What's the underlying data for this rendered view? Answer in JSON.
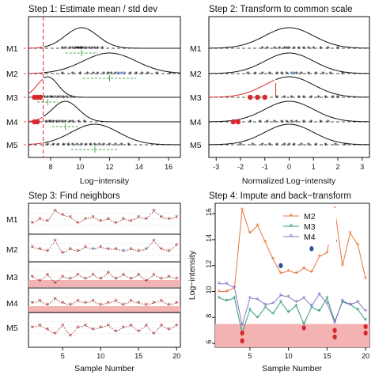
{
  "colors": {
    "black": "#111111",
    "red": "#d8262b",
    "blue": "#2f5fae",
    "green": "#4aa84a",
    "band": "#f4b3b3",
    "m2": "#e8763a",
    "m3": "#2e9a7e",
    "m4": "#8a75c4",
    "dot_red": "#d8262b",
    "dot_blue": "#2b4f9c"
  },
  "chart_data": [
    {
      "panel": "step1",
      "type": "scatter",
      "title": "Step 1: Estimate mean / std dev",
      "xlabel": "Log−intensity",
      "ylabel": "",
      "xlim": [
        6.5,
        16.8
      ],
      "xticks": [
        8,
        10,
        12,
        14,
        16
      ],
      "threshold": 7.5,
      "rows": [
        {
          "name": "M1",
          "mean": 10.1,
          "sd": 1.1,
          "points": [
            8.8,
            9.0,
            9.3,
            9.5,
            9.7,
            9.8,
            9.9,
            10.0,
            10.1,
            10.2,
            10.4,
            10.6,
            10.8,
            11.0,
            11.2,
            11.5
          ],
          "red_points": [],
          "blue_points": []
        },
        {
          "name": "M2",
          "mean": 12.0,
          "sd": 1.8,
          "points": [
            8.8,
            9.5,
            10.0,
            10.5,
            10.9,
            11.2,
            11.6,
            11.9,
            12.1,
            12.4,
            13.4,
            13.8,
            14.2,
            14.6,
            15.2,
            16.1
          ],
          "red_points": [],
          "blue_points": [
            12.6,
            12.8,
            13.0
          ]
        },
        {
          "name": "M3",
          "mean": 7.8,
          "sd": 0.7,
          "points": [
            7.4,
            7.6,
            7.8,
            8.0,
            8.1,
            8.3,
            8.5,
            8.7,
            8.9,
            9.1,
            9.4
          ],
          "red_points": [
            6.9,
            7.1,
            7.3
          ],
          "blue_points": []
        },
        {
          "name": "M4",
          "mean": 9.0,
          "sd": 0.9,
          "points": [
            7.7,
            7.9,
            8.0,
            8.2,
            8.4,
            8.6,
            8.8,
            9.0,
            9.3,
            9.5,
            9.9,
            10.3
          ],
          "red_points": [
            6.9,
            7.1
          ],
          "blue_points": []
        },
        {
          "name": "M5",
          "mean": 11.0,
          "sd": 1.6,
          "points": [
            7.8,
            8.2,
            8.5,
            8.9,
            9.2,
            9.5,
            9.8,
            10.1,
            10.4,
            10.7,
            11.0,
            11.3,
            11.6,
            12.0,
            12.4,
            12.8,
            13.3
          ],
          "red_points": [],
          "blue_points": []
        }
      ]
    },
    {
      "panel": "step2",
      "type": "scatter",
      "title": "Step 2: Transform to common scale",
      "xlabel": "Normalized Log−intensity",
      "ylabel": "",
      "xlim": [
        -3.3,
        3.3
      ],
      "xticks": [
        -3,
        -2,
        -1,
        0,
        1,
        2,
        3
      ],
      "rows": [
        {
          "name": "M1",
          "threshold": null,
          "points": [
            -1.1,
            -0.9,
            -0.6,
            -0.4,
            -0.2,
            -0.1,
            0.0,
            0.2,
            0.4,
            0.6,
            0.8,
            1.0,
            1.3,
            1.6,
            2.0
          ],
          "red_points": [],
          "blue_points": []
        },
        {
          "name": "M2",
          "threshold": null,
          "points": [
            -1.7,
            -1.4,
            -1.1,
            -0.8,
            -0.5,
            -0.3,
            -0.1,
            0.3,
            0.5,
            0.8,
            1.1,
            1.4,
            1.7,
            2.2
          ],
          "red_points": [],
          "blue_points": [
            0.1,
            0.2
          ]
        },
        {
          "name": "M3",
          "threshold": -0.55,
          "points": [
            -0.5,
            -0.2,
            0.1,
            0.4,
            0.6,
            0.9,
            1.2,
            1.5,
            1.8,
            2.0
          ],
          "red_points": [
            -1.6,
            -1.3,
            -1.0
          ],
          "blue_points": []
        },
        {
          "name": "M4",
          "threshold": null,
          "points": [
            -1.6,
            -1.2,
            -0.9,
            -0.6,
            -0.3,
            -0.1,
            0.1,
            0.3,
            0.6,
            0.9,
            1.3,
            1.6
          ],
          "red_points": [
            -2.3,
            -2.1
          ],
          "blue_points": []
        },
        {
          "name": "M5",
          "threshold": null,
          "points": [
            -2.0,
            -1.5,
            -1.1,
            -0.8,
            -0.5,
            -0.2,
            0.0,
            0.2,
            0.5,
            0.8,
            1.1,
            1.5,
            1.9,
            2.3
          ],
          "red_points": [],
          "blue_points": []
        }
      ]
    },
    {
      "panel": "step3",
      "type": "line",
      "title": "Step 3: Find neighbors",
      "xlabel": "Sample Number",
      "ylabel": "",
      "xlim": [
        0.5,
        20.5
      ],
      "xticks": [
        5,
        10,
        15,
        20
      ],
      "rows": [
        {
          "name": "M1",
          "values": [
            0.3,
            0.5,
            0.4,
            0.9,
            0.7,
            0.6,
            0.3,
            0.5,
            0.6,
            0.4,
            0.5,
            0.3,
            0.5,
            0.4,
            0.6,
            0.5,
            0.9,
            0.6,
            0.5,
            0.6
          ],
          "blue": [],
          "band": false
        },
        {
          "name": "M2",
          "values": [
            0.6,
            0.5,
            0.4,
            0.9,
            0.3,
            0.5,
            0.4,
            0.6,
            0.5,
            0.6,
            0.5,
            0.5,
            0.4,
            0.5,
            0.4,
            0.5,
            0.9,
            0.5,
            0.4,
            0.7
          ],
          "blue": [
            9,
            13,
            16
          ],
          "band": false
        },
        {
          "name": "M3",
          "values": [
            0.5,
            0.3,
            0.6,
            0.2,
            0.5,
            0.4,
            0.6,
            0.4,
            0.6,
            0.4,
            0.7,
            0.4,
            0.6,
            0.4,
            0.6,
            0.3,
            0.6,
            0.4,
            0.5,
            0.4
          ],
          "blue": [],
          "band": true
        },
        {
          "name": "M4",
          "values": [
            0.5,
            0.6,
            0.4,
            0.7,
            0.5,
            0.4,
            0.6,
            0.5,
            0.6,
            0.4,
            0.5,
            0.6,
            0.4,
            0.6,
            0.5,
            0.4,
            0.5,
            0.6,
            0.4,
            0.5
          ],
          "blue": [],
          "band": true
        },
        {
          "name": "M5",
          "values": [
            0.5,
            0.6,
            0.4,
            0.2,
            0.6,
            0.1,
            0.5,
            0.6,
            0.4,
            0.5,
            0.6,
            0.3,
            0.5,
            0.6,
            0.3,
            0.6,
            0.2,
            0.6,
            0.4,
            0.6
          ],
          "blue": [],
          "band": false
        }
      ]
    },
    {
      "panel": "step4",
      "type": "line",
      "title": "Step 4: Impute and back−transform",
      "xlabel": "Sample Number",
      "ylabel": "Log−intensity",
      "xlim": [
        0.5,
        20.5
      ],
      "ylim": [
        5.7,
        16.8
      ],
      "xticks": [
        5,
        10,
        15,
        20
      ],
      "yticks": [
        6,
        8,
        10,
        12,
        14,
        16
      ],
      "band_range": [
        5.7,
        7.5
      ],
      "legend": [
        "M2",
        "M3",
        "M4"
      ],
      "series": [
        {
          "name": "M2",
          "values": [
            10.0,
            10.0,
            10.3,
            16.3,
            14.5,
            15.1,
            13.8,
            12.5,
            11.4,
            11.6,
            11.4,
            11.8,
            11.5,
            12.7,
            13.0,
            16.4,
            12.0,
            14.5,
            13.6,
            11.0
          ]
        },
        {
          "name": "M3",
          "values": [
            9.5,
            9.3,
            9.5,
            6.8,
            8.6,
            8.0,
            8.8,
            8.3,
            9.2,
            8.4,
            8.9,
            7.5,
            8.8,
            8.5,
            9.5,
            7.7,
            9.2,
            9.0,
            8.6,
            7.8
          ]
        },
        {
          "name": "M4",
          "values": [
            10.6,
            10.6,
            10.3,
            7.4,
            9.5,
            9.4,
            9.0,
            9.1,
            9.7,
            9.6,
            9.2,
            9.5,
            8.9,
            9.8,
            9.1,
            7.6,
            9.3,
            9.0,
            9.2,
            8.5
          ]
        }
      ],
      "imputed_blue": [
        [
          9,
          12.0
        ],
        [
          13,
          13.3
        ],
        [
          16,
          13.9
        ]
      ],
      "imputed_red": [
        [
          4,
          6.2
        ],
        [
          4,
          6.8
        ],
        [
          12,
          7.2
        ],
        [
          16,
          6.5
        ],
        [
          16,
          7.0
        ],
        [
          20,
          6.8
        ],
        [
          20,
          7.3
        ]
      ]
    }
  ]
}
